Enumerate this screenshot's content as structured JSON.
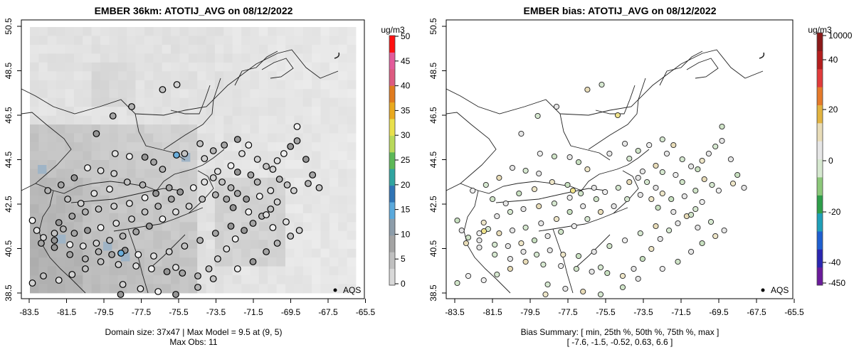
{
  "colors": {
    "conc_scale": [
      "#d9d9d9",
      "#c0c0c0",
      "#a4a4a4",
      "#8d9daa",
      "#5aa9dc",
      "#2f74b5",
      "#30a4a0",
      "#5cb857",
      "#b9d95a",
      "#e9e04c",
      "#e9a91e",
      "#e07b1e",
      "#dd5a80",
      "#e35a9a",
      "#ff1010"
    ],
    "bias_scale": [
      "#6a1b9a",
      "#2a26b0",
      "#1e5fd0",
      "#1f9fb8",
      "#2e9e4a",
      "#8cc87a",
      "#d6e8d0",
      "#e6e6e6",
      "#e8dcb8",
      "#e2b340",
      "#e57a2a",
      "#e03b3b",
      "#b41e1e",
      "#8b1a1a"
    ]
  },
  "chart_data": [
    {
      "type": "map-heatmap",
      "title": "EMBER 36km: ATOTIJ_AVG on 08/12/2022",
      "x_ticks": [
        "-83.5",
        "-81.5",
        "-79.5",
        "-77.5",
        "-75.5",
        "-73.5",
        "-71.5",
        "-69.5",
        "-67.5",
        "-65.5"
      ],
      "y_ticks": [
        "38.5",
        "40.5",
        "42.5",
        "44.5",
        "46.5",
        "48.5",
        "50.5"
      ],
      "xlim": [
        -84.5,
        -65.0
      ],
      "ylim": [
        38.5,
        50.5
      ],
      "colorbar": {
        "unit": "ug/m3",
        "min": 0,
        "max": 50,
        "ticks": [
          "0",
          "5",
          "10",
          "15",
          "20",
          "25",
          "30",
          "35",
          "40",
          "45",
          "50"
        ]
      },
      "legend": "AQS",
      "caption": [
        "Domain size: 37x47 | Max Model = 9.5 at (9, 5)",
        "Max Obs: 11"
      ]
    },
    {
      "type": "map-scatter",
      "title": "EMBER bias: ATOTIJ_AVG on 08/12/2022",
      "x_ticks": [
        "-83.5",
        "-81.5",
        "-79.5",
        "-77.5",
        "-75.5",
        "-73.5",
        "-71.5",
        "-69.5",
        "-67.5",
        "-65.5"
      ],
      "y_ticks": [
        "38.5",
        "40.5",
        "42.5",
        "44.5",
        "46.5",
        "48.5",
        "50.5"
      ],
      "xlim": [
        -84.5,
        -65.0
      ],
      "ylim": [
        38.5,
        50.5
      ],
      "colorbar": {
        "unit": "ug/m3",
        "ticks": [
          "10000",
          "40",
          "20",
          "0",
          "-20",
          "-40",
          "-450"
        ]
      },
      "legend": "AQS",
      "caption": [
        "Bias Summary: [ min, 25th %, 50th %, 75th %, max ]",
        "[ -7.6,   -1.5,   -0.52,   0.63,   6.6 ]"
      ],
      "bias_summary": {
        "min": -7.6,
        "p25": -1.5,
        "p50": -0.52,
        "p75": 0.63,
        "max": 6.6
      }
    }
  ]
}
